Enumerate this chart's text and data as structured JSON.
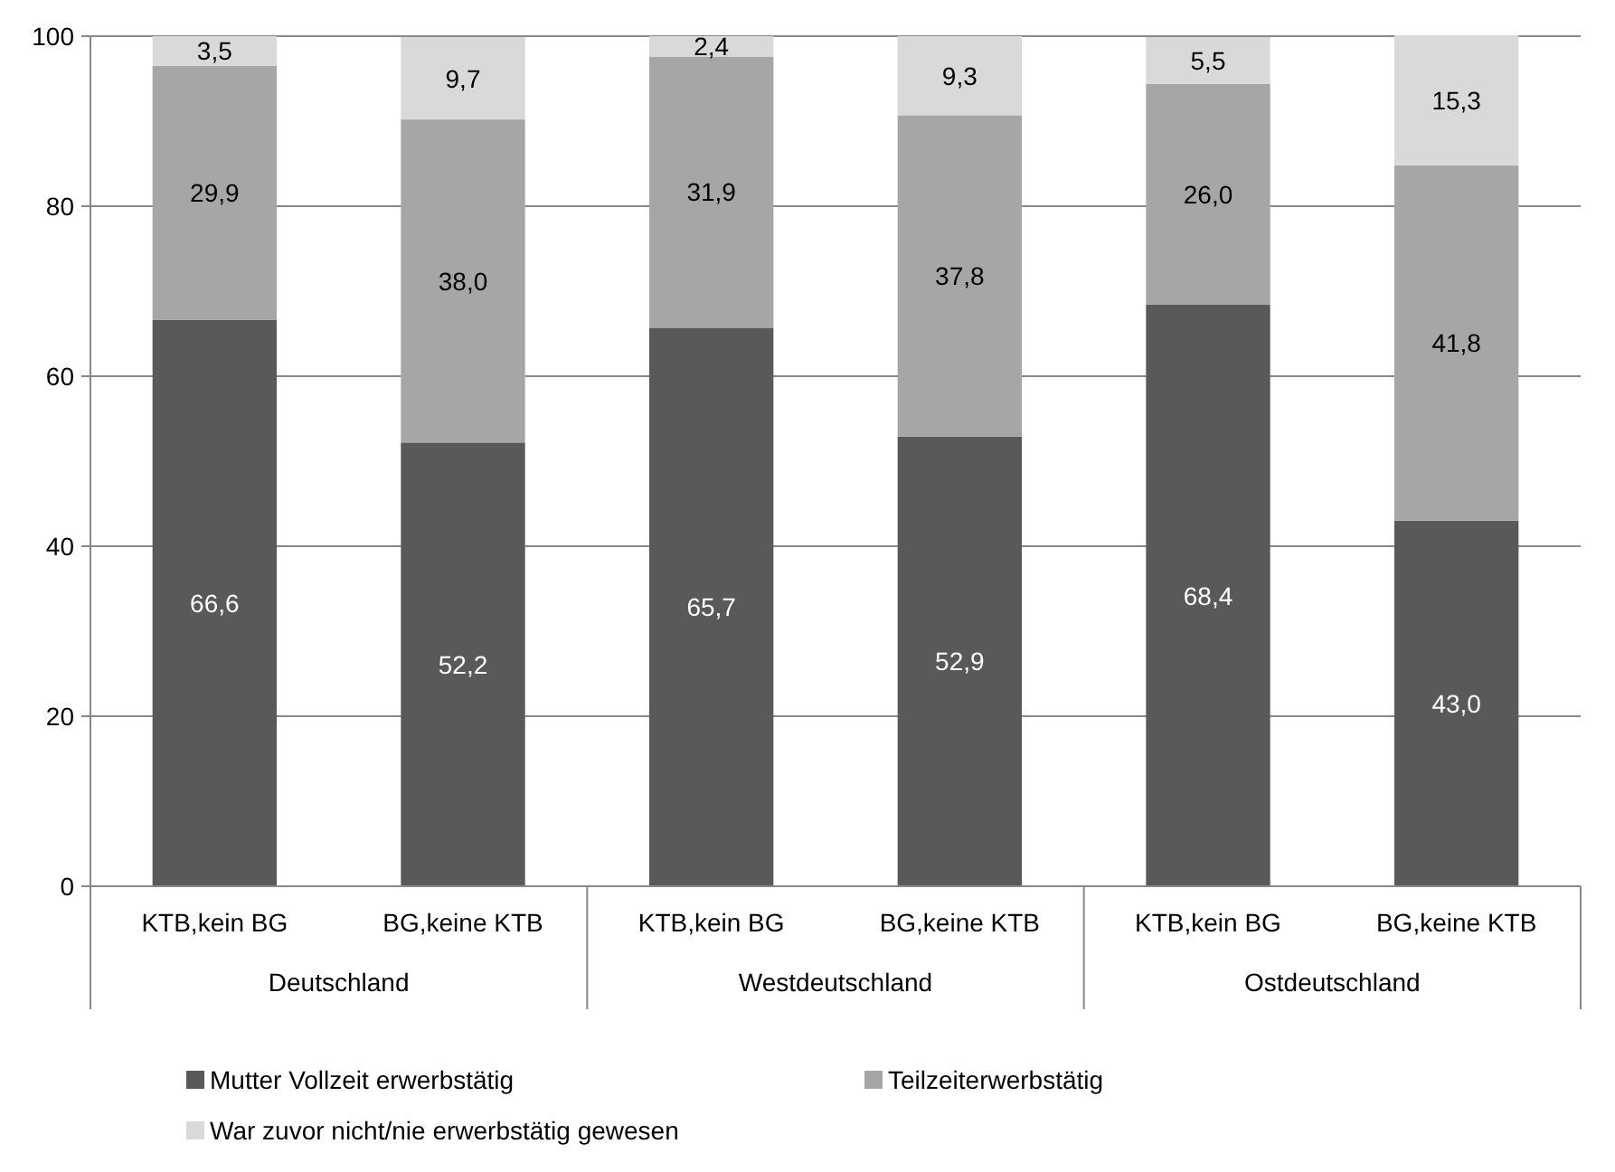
{
  "chart_data": {
    "type": "bar",
    "stacked": true,
    "categories": [
      "KTB,kein BG",
      "BG,keine KTB",
      "KTB,kein BG",
      "BG,keine KTB",
      "KTB,kein BG",
      "BG,keine KTB"
    ],
    "series": [
      {
        "name": "Mutter Vollzeit erwerbstätig",
        "color": "#595959",
        "values": [
          66.6,
          52.2,
          65.7,
          52.9,
          68.4,
          43.0
        ],
        "value_labels": [
          "66,6",
          "52,2",
          "65,7",
          "52,9",
          "68,4",
          "43,0"
        ]
      },
      {
        "name": "Teilzeiterwerbstätig",
        "color": "#a6a6a6",
        "values": [
          29.9,
          38.0,
          31.9,
          37.8,
          26.0,
          41.8
        ],
        "value_labels": [
          "29,9",
          "38,0",
          "31,9",
          "37,8",
          "26,0",
          "41,8"
        ]
      },
      {
        "name": "War zuvor nicht/nie erwerbstätig gewesen",
        "color": "#d9d9d9",
        "values": [
          3.5,
          9.7,
          2.4,
          9.3,
          5.5,
          15.3
        ],
        "value_labels": [
          "3,5",
          "9,7",
          "2,4",
          "9,3",
          "5,5",
          "15,3"
        ]
      }
    ],
    "ylim": [
      0,
      100
    ],
    "yticks": [
      0,
      20,
      40,
      60,
      80,
      100
    ],
    "grid": "y",
    "legend": "bottom",
    "annotations": [
      "Deutschland",
      "Westdeutschland",
      "Ostdeutschland"
    ]
  }
}
